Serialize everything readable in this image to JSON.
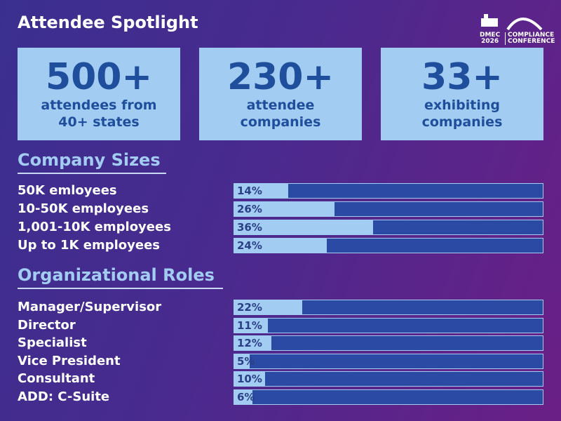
{
  "header": {
    "title": "Attendee Spotlight",
    "logo": {
      "event": "DMEC",
      "year": "2026",
      "line1": "COMPLIANCE",
      "line2": "CONFERENCE"
    }
  },
  "stats": [
    {
      "number": "500+",
      "caption": [
        "attendees from",
        "40+ states"
      ]
    },
    {
      "number": "230+",
      "caption": [
        "attendee",
        "companies"
      ]
    },
    {
      "number": "33+",
      "caption": [
        "exhibiting",
        "companies"
      ]
    }
  ],
  "sections": [
    {
      "title": "Company Sizes",
      "xlim": [
        0,
        80
      ],
      "labels": [
        "50K emloyees",
        "10-50K employees",
        "1,001-10K employees",
        "Up to 1K employees"
      ],
      "values": [
        14,
        26,
        36,
        24
      ],
      "value_labels": [
        "14%",
        "26%",
        "36%",
        "24%"
      ]
    },
    {
      "title": "Organizational Roles",
      "xlim": [
        0,
        100
      ],
      "labels": [
        "Manager/Supervisor",
        "Director",
        "Specialist",
        "Vice President",
        "Consultant",
        "ADD: C-Suite"
      ],
      "values": [
        22,
        11,
        12,
        5,
        10,
        6
      ],
      "value_labels": [
        "22%",
        "11%",
        "12%",
        "5%",
        "10%",
        "6%"
      ]
    }
  ]
}
